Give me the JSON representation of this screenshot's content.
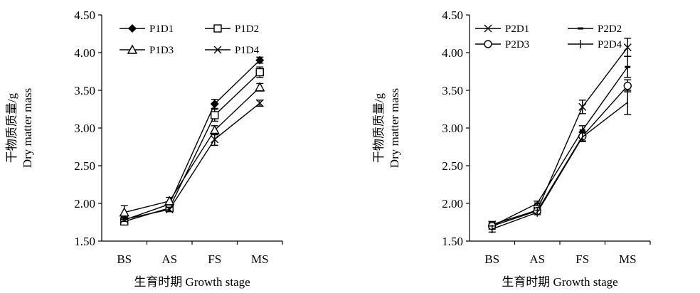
{
  "chart_data": [
    {
      "type": "line",
      "categories": [
        "BS",
        "AS",
        "FS",
        "MS"
      ],
      "xlabel": "生育时期   Growth stage",
      "ylabel_cn": "干物质质量/g",
      "ylabel_en": "Dry  matter mass",
      "ylim": [
        1.5,
        4.5
      ],
      "yticks": [
        "1.50",
        "2.00",
        "2.50",
        "3.00",
        "3.50",
        "4.00",
        "4.50"
      ],
      "grid": false,
      "legend": "top-left",
      "series": [
        {
          "name": "P1D1",
          "marker": "diamond",
          "values": [
            1.78,
            1.99,
            3.32,
            3.9
          ],
          "errors": [
            0.03,
            0.03,
            0.06,
            0.04
          ]
        },
        {
          "name": "P1D2",
          "marker": "square",
          "values": [
            1.76,
            1.94,
            3.17,
            3.74
          ],
          "errors": [
            0.03,
            0.04,
            0.08,
            0.07
          ]
        },
        {
          "name": "P1D3",
          "marker": "triangle",
          "values": [
            1.88,
            2.03,
            2.97,
            3.54
          ],
          "errors": [
            0.09,
            0.05,
            0.06,
            0.05
          ]
        },
        {
          "name": "P1D4",
          "marker": "x",
          "values": [
            1.79,
            1.92,
            2.85,
            3.33
          ],
          "errors": [
            0.03,
            0.03,
            0.08,
            0.04
          ]
        }
      ]
    },
    {
      "type": "line",
      "categories": [
        "BS",
        "AS",
        "FS",
        "MS"
      ],
      "xlabel": "生育时期   Growth stage",
      "ylabel_cn": "干物质质量/g",
      "ylabel_en": "Dry  matter mass",
      "ylim": [
        1.5,
        4.5
      ],
      "yticks": [
        "1.50",
        "2.00",
        "2.50",
        "3.00",
        "3.50",
        "4.00",
        "4.50"
      ],
      "grid": false,
      "legend": "top-left",
      "series": [
        {
          "name": "P2D1",
          "marker": "x",
          "values": [
            1.72,
            1.91,
            3.28,
            4.07
          ],
          "errors": [
            0.04,
            0.03,
            0.09,
            0.12
          ]
        },
        {
          "name": "P2D2",
          "marker": "dash",
          "values": [
            1.7,
            2.0,
            2.97,
            3.81
          ],
          "errors": [
            0.04,
            0.03,
            0.06,
            0.14
          ]
        },
        {
          "name": "P2D3",
          "marker": "circle",
          "values": [
            1.7,
            1.9,
            2.89,
            3.56
          ],
          "errors": [
            0.04,
            0.03,
            0.06,
            0.08
          ]
        },
        {
          "name": "P2D4",
          "marker": "plus",
          "values": [
            1.66,
            1.88,
            2.88,
            3.34
          ],
          "errors": [
            0.04,
            0.03,
            0.06,
            0.16
          ]
        }
      ]
    }
  ]
}
